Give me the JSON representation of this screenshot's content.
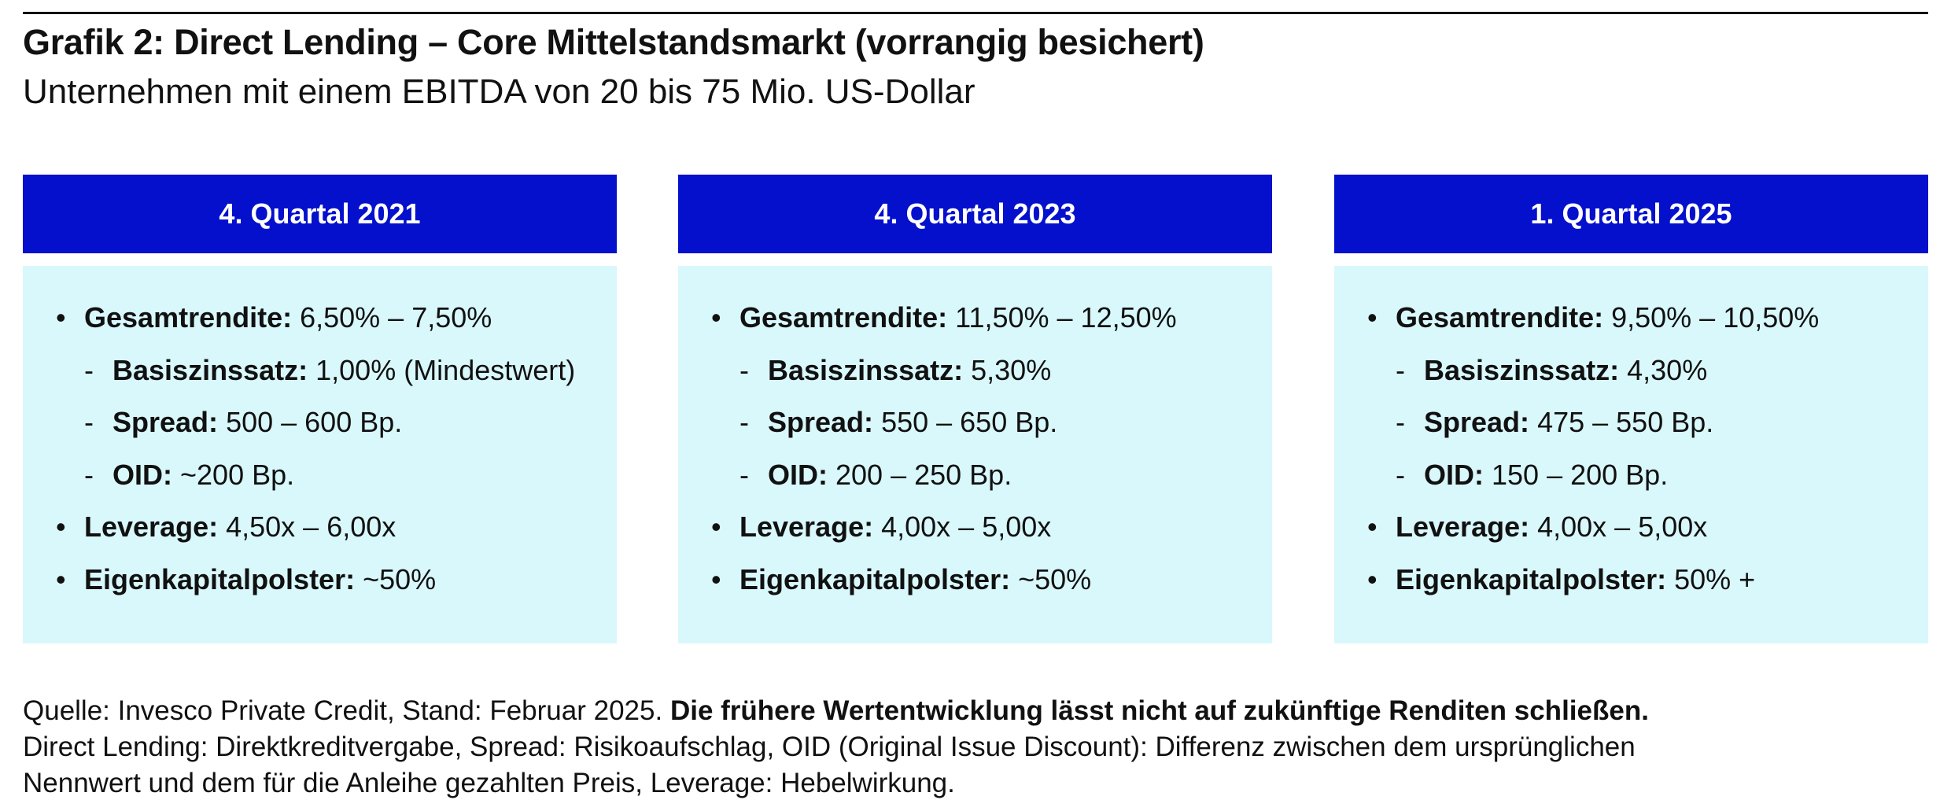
{
  "title": "Grafik 2: Direct Lending – Core Mittelstandsmarkt (vorrangig besichert)",
  "subtitle": "Unternehmen mit einem EBITDA von 20 bis 75 Mio. US-Dollar",
  "colors": {
    "header_bg": "#0410cc",
    "panel_bg": "#d9f8fc",
    "header_text": "#ffffff"
  },
  "columns": [
    {
      "header": "4. Quartal 2021",
      "items": [
        {
          "bullet": "•",
          "label": "Gesamtrendite:",
          "value": "6,50% – 7,50%"
        },
        {
          "bullet": "-",
          "label": "Basiszinssatz:",
          "value": "1,00% (Mindestwert)"
        },
        {
          "bullet": "-",
          "label": "Spread:",
          "value": "500 – 600 Bp."
        },
        {
          "bullet": "-",
          "label": "OID:",
          "value": "~200 Bp."
        },
        {
          "bullet": "•",
          "label": "Leverage:",
          "value": "4,50x – 6,00x"
        },
        {
          "bullet": "•",
          "label": "Eigenkapitalpolster:",
          "value": "~50%"
        }
      ]
    },
    {
      "header": "4. Quartal 2023",
      "items": [
        {
          "bullet": "•",
          "label": "Gesamtrendite:",
          "value": "11,50% – 12,50%"
        },
        {
          "bullet": "-",
          "label": "Basiszinssatz:",
          "value": "5,30%"
        },
        {
          "bullet": "-",
          "label": "Spread:",
          "value": "550 – 650 Bp."
        },
        {
          "bullet": "-",
          "label": "OID:",
          "value": "200 – 250 Bp."
        },
        {
          "bullet": "•",
          "label": "Leverage:",
          "value": "4,00x – 5,00x"
        },
        {
          "bullet": "•",
          "label": "Eigenkapitalpolster:",
          "value": "~50%"
        }
      ]
    },
    {
      "header": "1. Quartal 2025",
      "items": [
        {
          "bullet": "•",
          "label": "Gesamtrendite:",
          "value": "9,50% – 10,50%"
        },
        {
          "bullet": "-",
          "label": "Basiszinssatz:",
          "value": "4,30%"
        },
        {
          "bullet": "-",
          "label": "Spread:",
          "value": "475 – 550 Bp."
        },
        {
          "bullet": "-",
          "label": "OID:",
          "value": "150 – 200 Bp."
        },
        {
          "bullet": "•",
          "label": "Leverage:",
          "value": "4,00x – 5,00x"
        },
        {
          "bullet": "•",
          "label": "Eigenkapitalpolster:",
          "value": "50% +"
        }
      ]
    }
  ],
  "footer": {
    "source": "Quelle: Invesco Private Credit, Stand: Februar 2025.",
    "disclaimer": "Die frühere Wertentwicklung lässt nicht auf zukünftige Renditen schließen.",
    "note_line1": "Direct Lending: Direktkreditvergabe, Spread: Risikoaufschlag, OID (Original Issue Discount): Differenz zwischen dem ursprünglichen",
    "note_line2": "Nennwert und dem für die Anleihe gezahlten Preis, Leverage: Hebelwirkung."
  }
}
